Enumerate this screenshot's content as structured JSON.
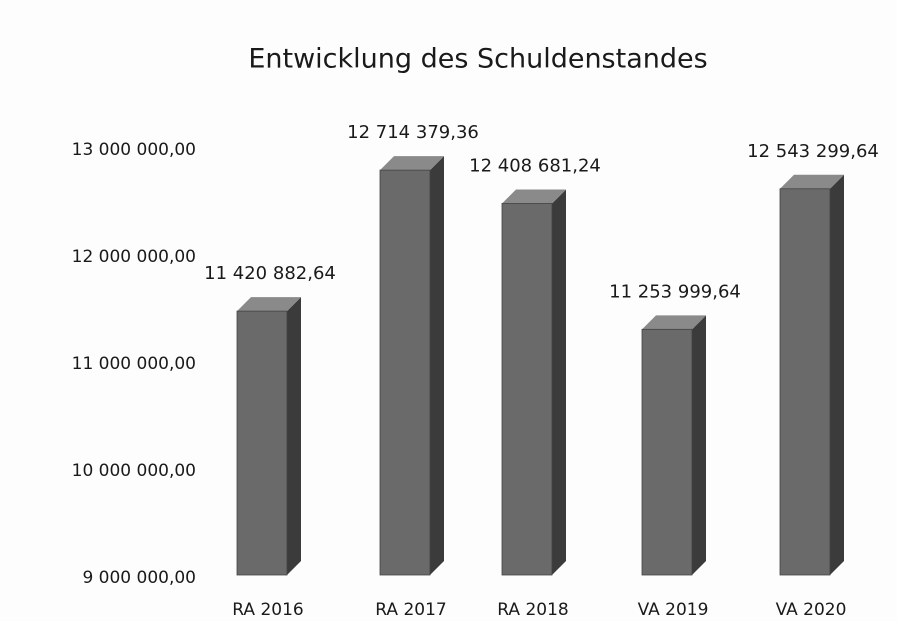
{
  "chart_data": {
    "type": "bar3d",
    "title": "Entwicklung des Schuldenstandes",
    "categories": [
      "RA 2016",
      "RA 2017",
      "RA 2018",
      "VA 2019",
      "VA 2020"
    ],
    "values": [
      11420882.64,
      12714379.36,
      12408681.24,
      11253999.64,
      12543299.64
    ],
    "value_labels": [
      "11 420 882,64",
      "12 714 379,36",
      "12 408 681,24",
      "11 253 999,64",
      "12 543 299,64"
    ],
    "color": "#6a6a6a",
    "ylim": [
      9000000,
      13000000
    ],
    "yticks": [
      {
        "value": 9000000,
        "label": "9 000 000,00"
      },
      {
        "value": 10000000,
        "label": "10 000 000,00"
      },
      {
        "value": 11000000,
        "label": "11 000 000,00"
      },
      {
        "value": 12000000,
        "label": "12 000 000,00"
      },
      {
        "value": 13000000,
        "label": "13 000 000,00"
      }
    ],
    "grid": false
  }
}
